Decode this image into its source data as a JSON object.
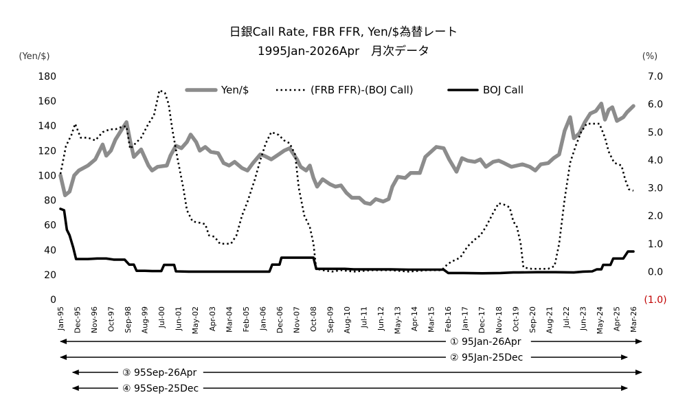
{
  "chart_data": {
    "type": "line",
    "title": "日銀Call Rate, FBR FFR, Yen/$為替レート",
    "subtitle": "1995Jan-2026Apr　月次データ",
    "y_left_label": "(Yen/$)",
    "y_right_label": "(%)",
    "y_left_ticks": [
      "180",
      "160",
      "140",
      "120",
      "100",
      "80",
      "60",
      "40",
      "20",
      "0"
    ],
    "y_right_ticks": [
      "7.0",
      "6.0",
      "5.0",
      "4.0",
      "3.0",
      "2.0",
      "1.0",
      "0.0",
      "(1.0)"
    ],
    "y_right_negative_color": "#c00000",
    "ylim_left": [
      0,
      180
    ],
    "ylim_right": [
      -1,
      7
    ],
    "x_ticks": [
      "Jan-95",
      "Dec-95",
      "Nov-96",
      "Oct-97",
      "Sep-98",
      "Aug-99",
      "Jul-00",
      "Jun-01",
      "May-02",
      "Apr-03",
      "Mar-04",
      "Feb-05",
      "Jan-06",
      "Dec-06",
      "Nov-07",
      "Oct-08",
      "Sep-09",
      "Aug-10",
      "Jul-11",
      "Jun-12",
      "May-13",
      "Apr-14",
      "Mar-15",
      "Feb-16",
      "Jan-17",
      "Dec-17",
      "Nov-18",
      "Oct-19",
      "Sep-20",
      "Aug-21",
      "Jul-22",
      "Jun-23",
      "May-24",
      "Apr-25",
      "Mar-26"
    ],
    "series": [
      {
        "name": "Yen/$",
        "axis": "left",
        "style": "thick-gray",
        "color": "#8c8c8c",
        "points": [
          [
            1995.0,
            100
          ],
          [
            1995.25,
            84
          ],
          [
            1995.5,
            87
          ],
          [
            1995.75,
            100
          ],
          [
            1996.0,
            104
          ],
          [
            1996.5,
            108
          ],
          [
            1996.9,
            113
          ],
          [
            1997.3,
            125
          ],
          [
            1997.5,
            116
          ],
          [
            1997.75,
            120
          ],
          [
            1998.0,
            129
          ],
          [
            1998.3,
            136
          ],
          [
            1998.6,
            143
          ],
          [
            1998.8,
            128
          ],
          [
            1999.0,
            115
          ],
          [
            1999.4,
            121
          ],
          [
            1999.8,
            108
          ],
          [
            2000.0,
            104
          ],
          [
            2000.3,
            107
          ],
          [
            2000.8,
            108
          ],
          [
            2001.0,
            116
          ],
          [
            2001.3,
            124
          ],
          [
            2001.6,
            122
          ],
          [
            2001.9,
            127
          ],
          [
            2002.1,
            133
          ],
          [
            2002.4,
            127
          ],
          [
            2002.6,
            120
          ],
          [
            2002.9,
            123
          ],
          [
            2003.2,
            119
          ],
          [
            2003.6,
            118
          ],
          [
            2003.9,
            110
          ],
          [
            2004.2,
            108
          ],
          [
            2004.5,
            111
          ],
          [
            2004.9,
            106
          ],
          [
            2005.2,
            104
          ],
          [
            2005.5,
            110
          ],
          [
            2005.9,
            117
          ],
          [
            2006.1,
            116
          ],
          [
            2006.5,
            113
          ],
          [
            2006.9,
            117
          ],
          [
            2007.2,
            120
          ],
          [
            2007.5,
            122
          ],
          [
            2007.9,
            113
          ],
          [
            2008.1,
            107
          ],
          [
            2008.4,
            104
          ],
          [
            2008.6,
            108
          ],
          [
            2008.8,
            98
          ],
          [
            2009.0,
            91
          ],
          [
            2009.3,
            97
          ],
          [
            2009.7,
            93
          ],
          [
            2010.0,
            91
          ],
          [
            2010.3,
            92
          ],
          [
            2010.6,
            86
          ],
          [
            2010.9,
            82
          ],
          [
            2011.3,
            82
          ],
          [
            2011.6,
            78
          ],
          [
            2011.9,
            77
          ],
          [
            2012.2,
            81
          ],
          [
            2012.6,
            79
          ],
          [
            2012.9,
            81
          ],
          [
            2013.1,
            91
          ],
          [
            2013.4,
            99
          ],
          [
            2013.8,
            98
          ],
          [
            2014.1,
            102
          ],
          [
            2014.6,
            102
          ],
          [
            2014.9,
            115
          ],
          [
            2015.2,
            119
          ],
          [
            2015.5,
            123
          ],
          [
            2015.9,
            122
          ],
          [
            2016.2,
            113
          ],
          [
            2016.6,
            103
          ],
          [
            2016.9,
            114
          ],
          [
            2017.2,
            112
          ],
          [
            2017.6,
            111
          ],
          [
            2017.9,
            113
          ],
          [
            2018.2,
            107
          ],
          [
            2018.6,
            111
          ],
          [
            2018.9,
            112
          ],
          [
            2019.2,
            110
          ],
          [
            2019.6,
            107
          ],
          [
            2019.9,
            108
          ],
          [
            2020.2,
            109
          ],
          [
            2020.6,
            107
          ],
          [
            2020.9,
            104
          ],
          [
            2021.2,
            109
          ],
          [
            2021.6,
            110
          ],
          [
            2021.9,
            114
          ],
          [
            2022.2,
            117
          ],
          [
            2022.5,
            136
          ],
          [
            2022.8,
            147
          ],
          [
            2023.0,
            130
          ],
          [
            2023.3,
            134
          ],
          [
            2023.6,
            143
          ],
          [
            2023.9,
            150
          ],
          [
            2024.2,
            152
          ],
          [
            2024.5,
            158
          ],
          [
            2024.7,
            145
          ],
          [
            2024.9,
            153
          ],
          [
            2025.1,
            155
          ],
          [
            2025.35,
            144
          ],
          [
            2025.7,
            147
          ],
          [
            2025.9,
            151
          ],
          [
            2026.25,
            156
          ]
        ]
      },
      {
        "name": "(FRB FFR)-(BOJ Call)",
        "axis": "right",
        "style": "dotted",
        "color": "#000000",
        "points": [
          [
            1995.0,
            3.5
          ],
          [
            1995.3,
            4.5
          ],
          [
            1995.6,
            4.9
          ],
          [
            1995.8,
            5.3
          ],
          [
            1996.1,
            4.8
          ],
          [
            1996.5,
            4.8
          ],
          [
            1996.9,
            4.7
          ],
          [
            1997.3,
            5.0
          ],
          [
            1997.7,
            5.1
          ],
          [
            1998.0,
            5.1
          ],
          [
            1998.4,
            5.2
          ],
          [
            1998.6,
            5.2
          ],
          [
            1998.8,
            4.4
          ],
          [
            1999.1,
            4.6
          ],
          [
            1999.4,
            4.8
          ],
          [
            1999.8,
            5.3
          ],
          [
            2000.1,
            5.6
          ],
          [
            2000.4,
            6.5
          ],
          [
            2000.7,
            6.4
          ],
          [
            2000.9,
            6.0
          ],
          [
            2001.1,
            5.1
          ],
          [
            2001.4,
            4.0
          ],
          [
            2001.7,
            3.0
          ],
          [
            2001.9,
            2.2
          ],
          [
            2002.2,
            1.8
          ],
          [
            2002.6,
            1.75
          ],
          [
            2002.9,
            1.7
          ],
          [
            2003.1,
            1.3
          ],
          [
            2003.4,
            1.25
          ],
          [
            2003.7,
            1.0
          ],
          [
            2004.0,
            1.0
          ],
          [
            2004.3,
            1.0
          ],
          [
            2004.6,
            1.3
          ],
          [
            2004.9,
            2.0
          ],
          [
            2005.2,
            2.5
          ],
          [
            2005.6,
            3.3
          ],
          [
            2005.9,
            4.0
          ],
          [
            2006.2,
            4.6
          ],
          [
            2006.5,
            5.0
          ],
          [
            2006.9,
            4.9
          ],
          [
            2007.2,
            4.7
          ],
          [
            2007.5,
            4.6
          ],
          [
            2007.8,
            4.2
          ],
          [
            2008.0,
            3.0
          ],
          [
            2008.3,
            2.0
          ],
          [
            2008.6,
            1.6
          ],
          [
            2008.8,
            1.0
          ],
          [
            2008.95,
            0.1
          ],
          [
            2009.3,
            0.05
          ],
          [
            2009.8,
            0.0
          ],
          [
            2010.3,
            0.05
          ],
          [
            2011.0,
            0.0
          ],
          [
            2012.0,
            0.05
          ],
          [
            2013.0,
            0.05
          ],
          [
            2014.0,
            0.0
          ],
          [
            2015.0,
            0.05
          ],
          [
            2015.8,
            0.05
          ],
          [
            2016.0,
            0.2
          ],
          [
            2016.3,
            0.35
          ],
          [
            2016.8,
            0.5
          ],
          [
            2017.2,
            0.9
          ],
          [
            2017.6,
            1.15
          ],
          [
            2017.9,
            1.3
          ],
          [
            2018.2,
            1.6
          ],
          [
            2018.6,
            2.1
          ],
          [
            2018.9,
            2.45
          ],
          [
            2019.2,
            2.4
          ],
          [
            2019.5,
            2.3
          ],
          [
            2019.7,
            1.8
          ],
          [
            2019.9,
            1.6
          ],
          [
            2020.1,
            1.0
          ],
          [
            2020.25,
            0.15
          ],
          [
            2020.7,
            0.1
          ],
          [
            2021.2,
            0.1
          ],
          [
            2021.6,
            0.1
          ],
          [
            2021.95,
            0.2
          ],
          [
            2022.2,
            1.0
          ],
          [
            2022.5,
            2.6
          ],
          [
            2022.8,
            3.9
          ],
          [
            2023.1,
            4.5
          ],
          [
            2023.4,
            5.0
          ],
          [
            2023.7,
            5.3
          ],
          [
            2024.0,
            5.3
          ],
          [
            2024.4,
            5.3
          ],
          [
            2024.7,
            4.8
          ],
          [
            2024.9,
            4.3
          ],
          [
            2025.2,
            3.9
          ],
          [
            2025.6,
            3.8
          ],
          [
            2025.8,
            3.3
          ],
          [
            2026.0,
            2.95
          ],
          [
            2026.25,
            2.9
          ]
        ]
      },
      {
        "name": "BOJ Call",
        "axis": "right",
        "style": "solid-black",
        "color": "#000000",
        "points": [
          [
            1995.0,
            2.25
          ],
          [
            1995.2,
            2.2
          ],
          [
            1995.35,
            1.5
          ],
          [
            1995.5,
            1.3
          ],
          [
            1995.7,
            0.85
          ],
          [
            1995.85,
            0.45
          ],
          [
            1996.0,
            0.45
          ],
          [
            1996.5,
            0.45
          ],
          [
            1997.0,
            0.47
          ],
          [
            1997.5,
            0.47
          ],
          [
            1997.9,
            0.43
          ],
          [
            1998.5,
            0.43
          ],
          [
            1998.75,
            0.25
          ],
          [
            1999.0,
            0.25
          ],
          [
            1999.15,
            0.03
          ],
          [
            1999.6,
            0.03
          ],
          [
            2000.0,
            0.02
          ],
          [
            2000.5,
            0.02
          ],
          [
            2000.65,
            0.24
          ],
          [
            2001.2,
            0.24
          ],
          [
            2001.3,
            0.01
          ],
          [
            2002.0,
            0.0
          ],
          [
            2003.0,
            0.0
          ],
          [
            2004.0,
            0.0
          ],
          [
            2005.0,
            0.0
          ],
          [
            2006.0,
            0.0
          ],
          [
            2006.4,
            0.0
          ],
          [
            2006.55,
            0.25
          ],
          [
            2006.95,
            0.25
          ],
          [
            2007.05,
            0.5
          ],
          [
            2008.0,
            0.5
          ],
          [
            2008.8,
            0.5
          ],
          [
            2008.95,
            0.1
          ],
          [
            2009.5,
            0.1
          ],
          [
            2010.5,
            0.1
          ],
          [
            2011.0,
            0.08
          ],
          [
            2012.0,
            0.08
          ],
          [
            2013.0,
            0.08
          ],
          [
            2014.0,
            0.07
          ],
          [
            2015.0,
            0.07
          ],
          [
            2015.9,
            0.07
          ],
          [
            2016.15,
            -0.05
          ],
          [
            2016.5,
            -0.05
          ],
          [
            2017.0,
            -0.05
          ],
          [
            2018.0,
            -0.06
          ],
          [
            2019.0,
            -0.05
          ],
          [
            2019.7,
            -0.03
          ],
          [
            2020.0,
            -0.03
          ],
          [
            2021.0,
            -0.02
          ],
          [
            2022.0,
            -0.02
          ],
          [
            2023.0,
            -0.03
          ],
          [
            2023.5,
            0.0
          ],
          [
            2024.0,
            0.01
          ],
          [
            2024.25,
            0.08
          ],
          [
            2024.5,
            0.08
          ],
          [
            2024.6,
            0.24
          ],
          [
            2025.0,
            0.24
          ],
          [
            2025.15,
            0.47
          ],
          [
            2025.7,
            0.47
          ],
          [
            2025.95,
            0.72
          ],
          [
            2026.25,
            0.72
          ]
        ]
      }
    ],
    "periods": [
      {
        "label": "① 95Jan-26Apr",
        "from": "Jan-95",
        "to": "Apr-26"
      },
      {
        "label": "② 95Jan-25Dec",
        "from": "Jan-95",
        "to": "Dec-25"
      },
      {
        "label": "③ 95Sep-26Apr",
        "from": "Sep-95",
        "to": "Apr-26"
      },
      {
        "label": "④ 95Sep-25Dec",
        "from": "Sep-95",
        "to": "Dec-25"
      }
    ],
    "legend_position": "top-center",
    "grid": false
  }
}
